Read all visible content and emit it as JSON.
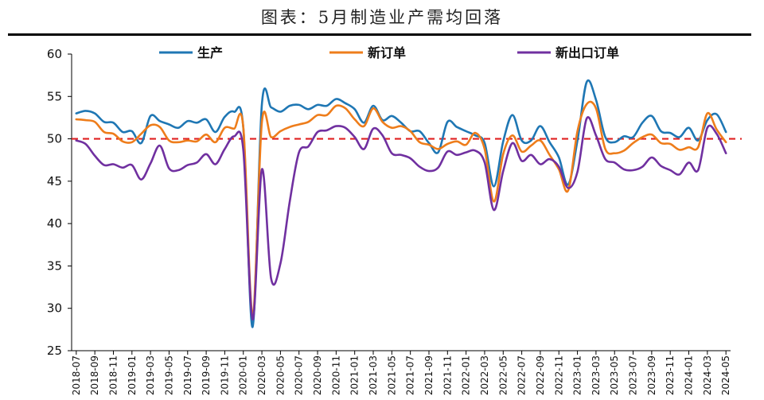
{
  "title": "图表：5月制造业产需均回落",
  "chart_data": {
    "type": "line",
    "ylim": [
      25,
      60
    ],
    "yticks": [
      25,
      30,
      35,
      40,
      45,
      50,
      55,
      60
    ],
    "x_tick_labels": [
      "2018-07",
      "2018-09",
      "2018-11",
      "2019-01",
      "2019-03",
      "2019-05",
      "2019-07",
      "2019-09",
      "2019-11",
      "2020-01",
      "2020-03",
      "2020-05",
      "2020-07",
      "2020-09",
      "2020-11",
      "2021-01",
      "2021-03",
      "2021-05",
      "2021-07",
      "2021-09",
      "2021-11",
      "2022-01",
      "2022-03",
      "2022-05",
      "2022-07",
      "2022-09",
      "2022-11",
      "2023-01",
      "2023-03",
      "2023-05",
      "2023-07",
      "2023-09",
      "2023-11",
      "2024-01",
      "2024-03",
      "2024-05"
    ],
    "reference_line": {
      "y": 50,
      "color": "#e02020",
      "style": "dashed"
    },
    "legend_position": "top",
    "grid": false,
    "x": [
      "2018-07",
      "2018-08",
      "2018-09",
      "2018-10",
      "2018-11",
      "2018-12",
      "2019-01",
      "2019-02",
      "2019-03",
      "2019-04",
      "2019-05",
      "2019-06",
      "2019-07",
      "2019-08",
      "2019-09",
      "2019-10",
      "2019-11",
      "2019-12",
      "2020-01",
      "2020-02",
      "2020-03",
      "2020-04",
      "2020-05",
      "2020-06",
      "2020-07",
      "2020-08",
      "2020-09",
      "2020-10",
      "2020-11",
      "2020-12",
      "2021-01",
      "2021-02",
      "2021-03",
      "2021-04",
      "2021-05",
      "2021-06",
      "2021-07",
      "2021-08",
      "2021-09",
      "2021-10",
      "2021-11",
      "2021-12",
      "2022-01",
      "2022-02",
      "2022-03",
      "2022-04",
      "2022-05",
      "2022-06",
      "2022-07",
      "2022-08",
      "2022-09",
      "2022-10",
      "2022-11",
      "2022-12",
      "2023-01",
      "2023-02",
      "2023-03",
      "2023-04",
      "2023-05",
      "2023-06",
      "2023-07",
      "2023-08",
      "2023-09",
      "2023-10",
      "2023-11",
      "2023-12",
      "2024-01",
      "2024-02",
      "2024-03",
      "2024-04",
      "2024-05"
    ],
    "series": [
      {
        "name": "生产",
        "color": "#1f77b4",
        "values": [
          53.0,
          53.3,
          53.0,
          52.0,
          51.9,
          50.8,
          50.9,
          49.5,
          52.7,
          52.1,
          51.7,
          51.3,
          52.1,
          51.9,
          52.3,
          50.8,
          52.6,
          53.2,
          51.3,
          27.8,
          54.1,
          53.7,
          53.2,
          53.9,
          54.0,
          53.5,
          54.0,
          53.9,
          54.7,
          54.2,
          53.5,
          51.9,
          53.9,
          52.2,
          52.7,
          51.9,
          50.9,
          50.9,
          49.5,
          48.4,
          52.0,
          51.4,
          50.9,
          50.4,
          49.5,
          44.4,
          49.7,
          52.8,
          49.8,
          49.8,
          51.5,
          49.6,
          47.8,
          44.6,
          49.8,
          56.7,
          54.6,
          50.2,
          49.6,
          50.3,
          50.2,
          51.9,
          52.7,
          50.9,
          50.7,
          50.2,
          51.3,
          49.8,
          52.2,
          52.9,
          50.8
        ]
      },
      {
        "name": "新订单",
        "color": "#ee7d1b",
        "values": [
          52.3,
          52.2,
          52.0,
          50.8,
          50.6,
          49.7,
          49.6,
          50.6,
          51.6,
          51.4,
          49.8,
          49.6,
          49.8,
          49.7,
          50.5,
          49.6,
          51.3,
          51.2,
          51.4,
          29.3,
          52.0,
          50.2,
          50.9,
          51.4,
          51.7,
          52.0,
          52.8,
          52.8,
          53.9,
          53.6,
          52.3,
          51.5,
          53.6,
          52.0,
          51.3,
          51.5,
          50.9,
          49.6,
          49.3,
          48.8,
          49.4,
          49.7,
          49.3,
          50.7,
          48.8,
          42.6,
          48.2,
          50.4,
          48.5,
          49.2,
          49.8,
          48.1,
          46.4,
          43.9,
          50.9,
          54.1,
          53.6,
          48.8,
          48.3,
          48.6,
          49.5,
          50.2,
          50.5,
          49.5,
          49.4,
          48.7,
          49.0,
          49.0,
          53.0,
          51.1,
          49.6
        ]
      },
      {
        "name": "新出口订单",
        "color": "#7030a0",
        "values": [
          49.8,
          49.4,
          48.0,
          46.9,
          47.0,
          46.6,
          46.9,
          45.2,
          47.1,
          49.2,
          46.5,
          46.3,
          46.9,
          47.2,
          48.2,
          47.0,
          48.8,
          50.3,
          48.7,
          28.7,
          46.4,
          33.5,
          35.3,
          42.6,
          48.4,
          49.1,
          50.8,
          51.0,
          51.5,
          51.3,
          50.2,
          48.8,
          51.2,
          50.4,
          48.3,
          48.1,
          47.7,
          46.7,
          46.2,
          46.6,
          48.5,
          48.1,
          48.4,
          48.6,
          47.2,
          41.6,
          46.2,
          49.5,
          47.4,
          48.1,
          47.0,
          47.6,
          46.7,
          44.2,
          46.1,
          52.4,
          50.4,
          47.6,
          47.2,
          46.4,
          46.3,
          46.7,
          47.8,
          46.8,
          46.3,
          45.8,
          47.2,
          46.3,
          51.3,
          50.6,
          48.3
        ]
      }
    ]
  }
}
